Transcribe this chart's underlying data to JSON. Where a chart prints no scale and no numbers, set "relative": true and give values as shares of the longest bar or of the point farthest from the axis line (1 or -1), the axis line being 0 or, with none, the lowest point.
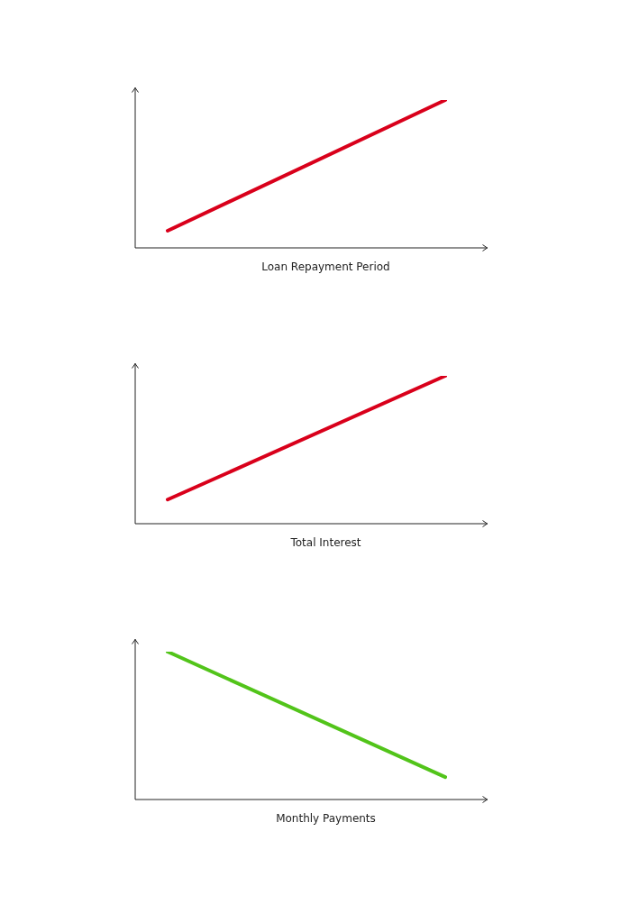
{
  "chart_data": [
    {
      "type": "line",
      "xlabel": "Loan Repayment Period",
      "categories": [
        null,
        null
      ],
      "relative": true,
      "series": [
        {
          "color": "#d9001b",
          "values": [
            0.116,
            1
          ]
        }
      ]
    },
    {
      "type": "line",
      "xlabel": "Total Interest",
      "categories": [
        null,
        null
      ],
      "relative": true,
      "series": [
        {
          "color": "#d9001b",
          "values": [
            0.163,
            1
          ]
        }
      ]
    },
    {
      "type": "line",
      "xlabel": "Monthly Payments",
      "categories": [
        null,
        null
      ],
      "relative": true,
      "series": [
        {
          "color": "#52c41a",
          "values": [
            1,
            0.152
          ]
        }
      ]
    }
  ]
}
